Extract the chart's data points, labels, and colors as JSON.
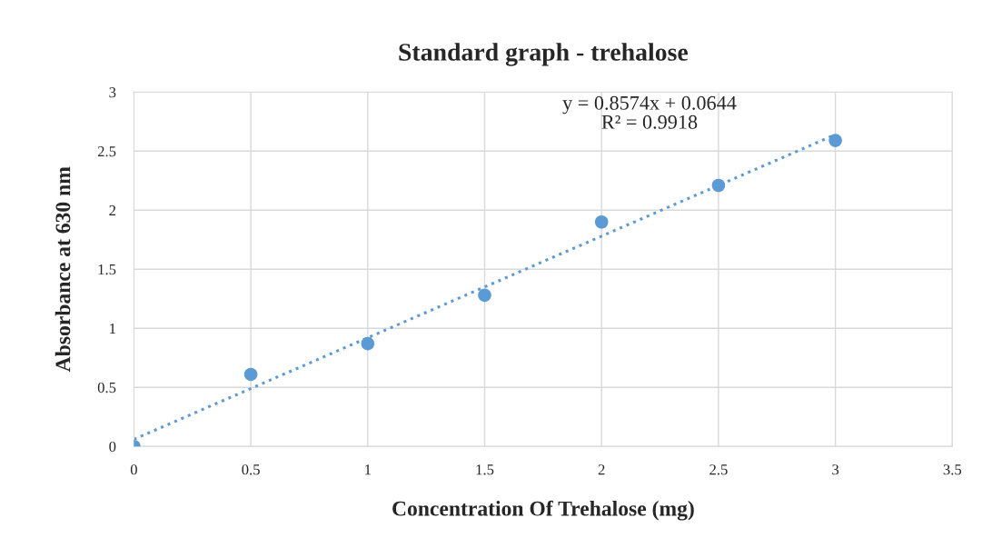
{
  "chart_data": {
    "type": "scatter",
    "title": "Standard graph - trehalose",
    "xlabel": "Concentration Of Trehalose (mg)",
    "ylabel": "Absorbance at 630 nm",
    "x": [
      0,
      0.5,
      1,
      1.5,
      2,
      2.5,
      3
    ],
    "series": [
      {
        "color": "#5b9bd5",
        "marker": "circle",
        "values": [
          0,
          0.61,
          0.87,
          1.28,
          1.9,
          2.21,
          2.59
        ]
      },
      {
        "type": "line",
        "color": "#5b9bd5",
        "line_style": "dotted",
        "marker": "none",
        "x": [
          0,
          3
        ],
        "values": [
          0.06,
          2.64
        ]
      }
    ],
    "annotations": [
      "y = 0.8574x + 0.0644",
      "R² = 0.9918"
    ],
    "xlim": [
      0,
      3.5
    ],
    "xticks": [
      0,
      0.5,
      1,
      1.5,
      2,
      2.5,
      3,
      3.5
    ],
    "ylim": [
      0,
      3
    ],
    "yticks": [
      0,
      0.5,
      1,
      1.5,
      2,
      2.5,
      3
    ],
    "grid": true,
    "legend": false
  }
}
